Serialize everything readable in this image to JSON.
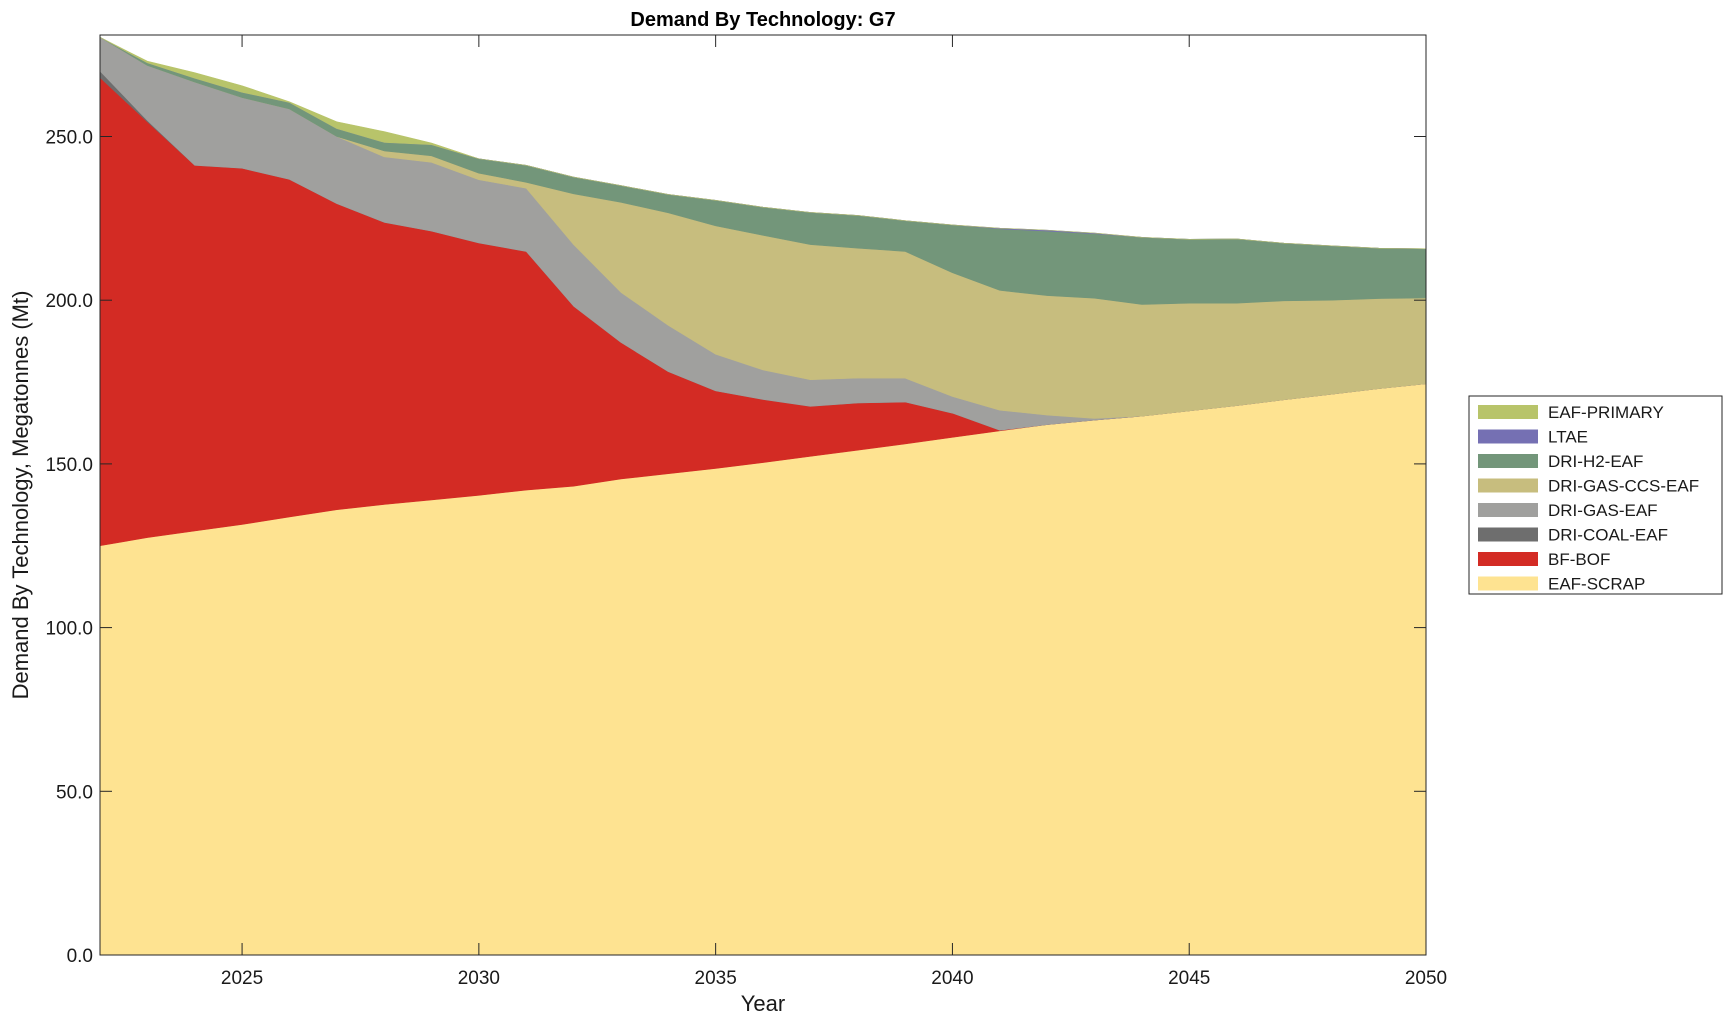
{
  "chart_data": {
    "type": "area",
    "stacked": true,
    "title": "Demand By Technology: G7",
    "xlabel": "Year",
    "ylabel": "Demand By Technology, Megatonnes (Mt)",
    "xlim": [
      2022,
      2050
    ],
    "ylim": [
      0,
      281
    ],
    "x_ticks": [
      2025,
      2030,
      2035,
      2040,
      2045,
      2050
    ],
    "y_ticks": [
      0,
      50,
      100,
      150,
      200,
      250
    ],
    "y_tick_labels": [
      "0.0",
      "50.0",
      "100.0",
      "150.0",
      "200.0",
      "250.0"
    ],
    "legend_position": "right",
    "x": [
      2022,
      2023,
      2024,
      2025,
      2026,
      2027,
      2028,
      2029,
      2030,
      2031,
      2032,
      2033,
      2034,
      2035,
      2036,
      2037,
      2038,
      2039,
      2040,
      2041,
      2042,
      2043,
      2044,
      2045,
      2046,
      2047,
      2048,
      2049,
      2050
    ],
    "series": [
      {
        "name": "EAF-SCRAP",
        "color": "#fee391",
        "values": [
          125,
          127.5,
          129.5,
          131.5,
          133.8,
          136,
          137.6,
          139,
          140.4,
          142,
          143.2,
          145.4,
          147,
          148.6,
          150.4,
          152.3,
          154.2,
          156.1,
          158.1,
          160.1,
          162,
          163.4,
          164.6,
          166.2,
          167.8,
          169.6,
          171.3,
          173,
          174.5
        ]
      },
      {
        "name": "BF-BOF",
        "color": "#d32b24",
        "values": [
          143,
          127,
          111.7,
          108.8,
          103.1,
          93.5,
          86.2,
          82.1,
          77.1,
          72.9,
          55,
          41.7,
          31.2,
          23.7,
          19.3,
          15.3,
          14.4,
          12.8,
          7.4,
          0.2,
          0,
          0,
          0,
          0,
          0,
          0,
          0,
          0,
          0
        ]
      },
      {
        "name": "DRI-COAL-EAF",
        "color": "#6e6e6e",
        "values": [
          2,
          0.4,
          0,
          0,
          0,
          0,
          0,
          0,
          0,
          0,
          0,
          0,
          0,
          0,
          0,
          0,
          0,
          0,
          0,
          0,
          0,
          0,
          0,
          0,
          0,
          0,
          0,
          0,
          0
        ]
      },
      {
        "name": "DRI-GAS-EAF",
        "color": "#a0a09e",
        "values": [
          10.3,
          16.8,
          25.4,
          21.6,
          21.5,
          20.5,
          20,
          21,
          19.3,
          19.3,
          18.8,
          15.3,
          14.1,
          11.2,
          9,
          8.1,
          7.6,
          7.3,
          5.1,
          6.1,
          2.9,
          0.5,
          0,
          0,
          0,
          0,
          0,
          0,
          0
        ]
      },
      {
        "name": "DRI-GAS-CCS-EAF",
        "color": "#c7bd7e",
        "values": [
          0,
          0,
          0,
          0,
          0,
          0,
          1.8,
          2,
          2,
          1.8,
          15.5,
          27.5,
          34.4,
          39.2,
          41.1,
          41.3,
          39.7,
          38.7,
          37.8,
          36.6,
          36.5,
          36.7,
          34.1,
          32.9,
          31.3,
          30.2,
          28.7,
          27.5,
          26.2
        ]
      },
      {
        "name": "DRI-H2-EAF",
        "color": "#73967a",
        "values": [
          0,
          0.8,
          1.2,
          1.6,
          2,
          2.4,
          2.6,
          3.4,
          4.4,
          5.2,
          5.1,
          5.1,
          5.6,
          7.8,
          8.6,
          9.8,
          10,
          9.4,
          14.6,
          18.8,
          19.7,
          19.7,
          20.5,
          19.5,
          19.6,
          17.6,
          16.6,
          15.4,
          15
        ]
      },
      {
        "name": "LTAE",
        "color": "#7570b3",
        "values": [
          0,
          0,
          0,
          0,
          0,
          0,
          0,
          0,
          0,
          0,
          0,
          0,
          0,
          0,
          0,
          0,
          0,
          0,
          0,
          0.2,
          0.3,
          0.2,
          0,
          0,
          0,
          0,
          0,
          0,
          0
        ]
      },
      {
        "name": "EAF-PRIMARY",
        "color": "#b8c46a",
        "values": [
          0,
          0.5,
          1.7,
          2,
          0.2,
          2.1,
          3.3,
          0.5,
          0,
          0,
          0,
          0,
          0,
          0,
          0,
          0,
          0,
          0,
          0,
          0,
          0,
          0,
          0,
          0,
          0,
          0,
          0,
          0,
          0
        ]
      }
    ],
    "legend_order": [
      "EAF-PRIMARY",
      "LTAE",
      "DRI-H2-EAF",
      "DRI-GAS-CCS-EAF",
      "DRI-GAS-EAF",
      "DRI-COAL-EAF",
      "BF-BOF",
      "EAF-SCRAP"
    ]
  }
}
